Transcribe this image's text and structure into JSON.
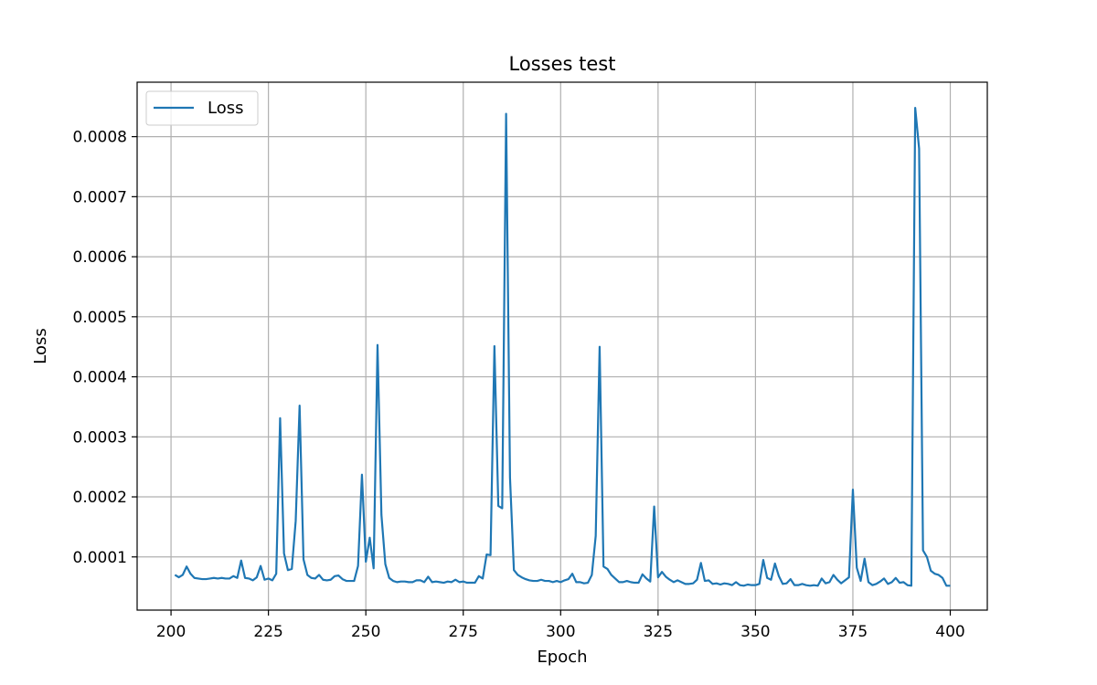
{
  "chart_data": {
    "type": "line",
    "title": "Losses test",
    "xlabel": "Epoch",
    "ylabel": "Loss",
    "xlim": [
      191.3,
      409.5
    ],
    "ylim": [
      1.14e-05,
      0.0008907
    ],
    "xticks": [
      200,
      225,
      250,
      275,
      300,
      325,
      350,
      375,
      400
    ],
    "xtick_labels": [
      "200",
      "225",
      "250",
      "275",
      "300",
      "325",
      "350",
      "375",
      "400"
    ],
    "yticks": [
      0.0001,
      0.0002,
      0.0003,
      0.0004,
      0.0005,
      0.0006,
      0.0007,
      0.0008
    ],
    "ytick_labels": [
      "0.0001",
      "0.0002",
      "0.0003",
      "0.0004",
      "0.0005",
      "0.0006",
      "0.0007",
      "0.0008"
    ],
    "grid": true,
    "legend_position": "upper-left",
    "line_color": "#1f77b4",
    "series": [
      {
        "name": "Loss",
        "x": [
          201,
          202,
          203,
          204,
          205,
          206,
          207,
          208,
          209,
          210,
          211,
          212,
          213,
          214,
          215,
          216,
          217,
          218,
          219,
          220,
          221,
          222,
          223,
          224,
          225,
          226,
          227,
          228,
          229,
          230,
          231,
          232,
          233,
          234,
          235,
          236,
          237,
          238,
          239,
          240,
          241,
          242,
          243,
          244,
          245,
          246,
          247,
          248,
          249,
          250,
          251,
          252,
          253,
          254,
          255,
          256,
          257,
          258,
          259,
          260,
          261,
          262,
          263,
          264,
          265,
          266,
          267,
          268,
          269,
          270,
          271,
          272,
          273,
          274,
          275,
          276,
          277,
          278,
          279,
          280,
          281,
          282,
          283,
          284,
          285,
          286,
          287,
          288,
          289,
          290,
          291,
          292,
          293,
          294,
          295,
          296,
          297,
          298,
          299,
          300,
          301,
          302,
          303,
          304,
          305,
          306,
          307,
          308,
          309,
          310,
          311,
          312,
          313,
          314,
          315,
          316,
          317,
          318,
          319,
          320,
          321,
          322,
          323,
          324,
          325,
          326,
          327,
          328,
          329,
          330,
          331,
          332,
          333,
          334,
          335,
          336,
          337,
          338,
          339,
          340,
          341,
          342,
          343,
          344,
          345,
          346,
          347,
          348,
          349,
          350,
          351,
          352,
          353,
          354,
          355,
          356,
          357,
          358,
          359,
          360,
          361,
          362,
          363,
          364,
          365,
          366,
          367,
          368,
          369,
          370,
          371,
          372,
          373,
          374,
          375,
          376,
          377,
          378,
          379,
          380,
          381,
          382,
          383,
          384,
          385,
          386,
          387,
          388,
          389,
          390,
          391,
          392,
          393,
          394,
          395,
          396,
          397,
          398,
          399,
          400
        ],
        "y": [
          7e-05,
          6.6e-05,
          7e-05,
          8.4e-05,
          7.2e-05,
          6.5e-05,
          6.4e-05,
          6.3e-05,
          6.3e-05,
          6.4e-05,
          6.5e-05,
          6.4e-05,
          6.5e-05,
          6.4e-05,
          6.4e-05,
          6.8e-05,
          6.5e-05,
          9.4e-05,
          6.5e-05,
          6.4e-05,
          6.1e-05,
          6.6e-05,
          8.5e-05,
          6.2e-05,
          6.4e-05,
          6.1e-05,
          7.2e-05,
          0.000331,
          0.000106,
          7.8e-05,
          8e-05,
          0.00016,
          0.000352,
          9.6e-05,
          7e-05,
          6.5e-05,
          6.4e-05,
          7e-05,
          6.2e-05,
          6.1e-05,
          6.2e-05,
          6.8e-05,
          6.9e-05,
          6.3e-05,
          6e-05,
          6e-05,
          6e-05,
          8.5e-05,
          0.000237,
          9.2e-05,
          0.000132,
          8.1e-05,
          0.000453,
          0.00017,
          8.8e-05,
          6.5e-05,
          6e-05,
          5.8e-05,
          5.9e-05,
          5.9e-05,
          5.8e-05,
          5.8e-05,
          6.1e-05,
          6.1e-05,
          5.8e-05,
          6.7e-05,
          5.8e-05,
          5.9e-05,
          5.8e-05,
          5.7e-05,
          5.9e-05,
          5.8e-05,
          6.2e-05,
          5.8e-05,
          5.9e-05,
          5.7e-05,
          5.7e-05,
          5.7e-05,
          6.8e-05,
          6.4e-05,
          0.000104,
          0.000103,
          0.000451,
          0.000185,
          0.000181,
          0.000838,
          0.000232,
          7.8e-05,
          7e-05,
          6.6e-05,
          6.3e-05,
          6.1e-05,
          6e-05,
          6e-05,
          6.2e-05,
          6e-05,
          6e-05,
          5.8e-05,
          6e-05,
          5.8e-05,
          6.1e-05,
          6.3e-05,
          7.2e-05,
          5.8e-05,
          5.8e-05,
          5.6e-05,
          5.7e-05,
          7e-05,
          0.000135,
          0.00045,
          8.4e-05,
          8e-05,
          7e-05,
          6.4e-05,
          5.8e-05,
          5.8e-05,
          6e-05,
          5.8e-05,
          5.7e-05,
          5.7e-05,
          7.1e-05,
          6.4e-05,
          5.9e-05,
          0.000184,
          6.6e-05,
          7.5e-05,
          6.7e-05,
          6.2e-05,
          5.8e-05,
          6.1e-05,
          5.8e-05,
          5.5e-05,
          5.5e-05,
          5.6e-05,
          6.2e-05,
          9e-05,
          6e-05,
          6.1e-05,
          5.5e-05,
          5.6e-05,
          5.4e-05,
          5.6e-05,
          5.5e-05,
          5.3e-05,
          5.8e-05,
          5.3e-05,
          5.2e-05,
          5.4e-05,
          5.3e-05,
          5.3e-05,
          5.5e-05,
          9.5e-05,
          6.5e-05,
          6.2e-05,
          8.9e-05,
          6.8e-05,
          5.5e-05,
          5.6e-05,
          6.3e-05,
          5.3e-05,
          5.3e-05,
          5.5e-05,
          5.3e-05,
          5.2e-05,
          5.3e-05,
          5.2e-05,
          6.4e-05,
          5.6e-05,
          5.8e-05,
          7e-05,
          6.2e-05,
          5.6e-05,
          6.1e-05,
          6.6e-05,
          0.000212,
          8.2e-05,
          6e-05,
          9.7e-05,
          5.8e-05,
          5.3e-05,
          5.5e-05,
          5.9e-05,
          6.4e-05,
          5.5e-05,
          5.8e-05,
          6.5e-05,
          5.7e-05,
          5.8e-05,
          5.3e-05,
          5.2e-05,
          0.000848,
          0.00078,
          0.000111,
          0.0001,
          7.7e-05,
          7.2e-05,
          7e-05,
          6.5e-05,
          5.2e-05,
          5.2e-05
        ]
      }
    ]
  }
}
